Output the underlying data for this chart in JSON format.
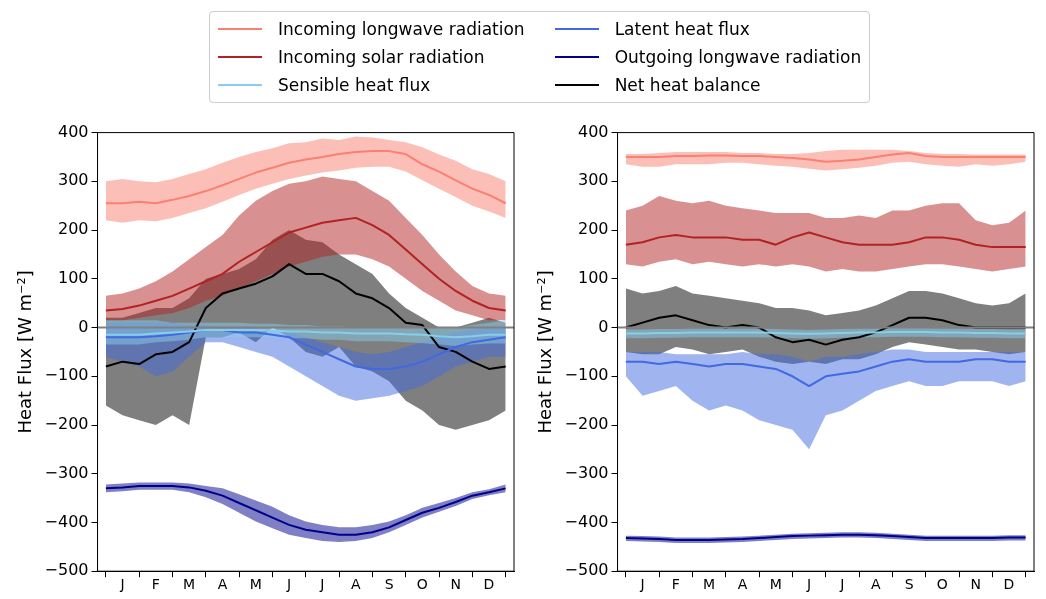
{
  "chart_data": [
    {
      "type": "line",
      "ylabel": "Heat Flux [W m⁻²]",
      "legend": "top",
      "grid": false,
      "categories": [
        null,
        "J",
        null,
        "F",
        null,
        "M",
        null,
        "A",
        null,
        "M",
        null,
        "J",
        null,
        "J",
        null,
        "A",
        null,
        "S",
        null,
        "O",
        null,
        "N",
        null,
        "D",
        null
      ],
      "ylim": [
        -500,
        400
      ],
      "yticks": [
        -500,
        -400,
        -300,
        -200,
        -100,
        0,
        100,
        200,
        300,
        400
      ],
      "ref_lines": [
        {
          "axis": "y",
          "value": 0,
          "color": "#808080"
        }
      ],
      "series": [
        {
          "name": "Incoming longwave radiation",
          "color": "#fa8072",
          "values": [
            255,
            255,
            258,
            255,
            262,
            270,
            280,
            292,
            305,
            318,
            328,
            338,
            345,
            350,
            356,
            360,
            362,
            362,
            356,
            335,
            320,
            302,
            285,
            272,
            255
          ],
          "lower": [
            220,
            215,
            220,
            218,
            225,
            235,
            245,
            258,
            272,
            285,
            295,
            305,
            312,
            318,
            322,
            328,
            330,
            330,
            320,
            302,
            285,
            268,
            250,
            238,
            225
          ],
          "upper": [
            300,
            305,
            300,
            298,
            305,
            315,
            325,
            338,
            350,
            360,
            368,
            378,
            380,
            388,
            385,
            392,
            390,
            385,
            380,
            370,
            355,
            342,
            325,
            315,
            300
          ]
        },
        {
          "name": "Incoming solar radiation",
          "color": "#b22222",
          "values": [
            35,
            38,
            45,
            55,
            65,
            80,
            95,
            110,
            135,
            155,
            175,
            195,
            205,
            215,
            220,
            225,
            210,
            190,
            160,
            130,
            100,
            75,
            55,
            40,
            35
          ],
          "lower": [
            15,
            15,
            20,
            25,
            30,
            40,
            55,
            65,
            80,
            95,
            110,
            125,
            135,
            145,
            150,
            150,
            140,
            125,
            100,
            75,
            55,
            35,
            25,
            15,
            15
          ],
          "upper": [
            65,
            70,
            80,
            95,
            115,
            140,
            165,
            190,
            230,
            260,
            280,
            295,
            300,
            310,
            305,
            300,
            280,
            260,
            225,
            190,
            150,
            115,
            85,
            70,
            65
          ]
        },
        {
          "name": "Sensible heat flux",
          "color": "#87ceeb",
          "values": [
            -15,
            -15,
            -15,
            -12,
            -10,
            -8,
            -5,
            -5,
            -5,
            -5,
            -6,
            -8,
            -8,
            -10,
            -10,
            -12,
            -12,
            -12,
            -14,
            -15,
            -18,
            -20,
            -18,
            -15,
            -15
          ],
          "lower": [
            -35,
            -35,
            -35,
            -30,
            -28,
            -25,
            -20,
            -20,
            -20,
            -20,
            -20,
            -22,
            -22,
            -25,
            -25,
            -28,
            -28,
            -28,
            -30,
            -32,
            -35,
            -38,
            -35,
            -33,
            -33
          ],
          "upper": [
            15,
            15,
            15,
            15,
            10,
            10,
            10,
            10,
            10,
            8,
            8,
            5,
            5,
            2,
            2,
            0,
            0,
            0,
            0,
            0,
            0,
            0,
            5,
            10,
            15
          ]
        },
        {
          "name": "Latent heat flux",
          "color": "#4169e1",
          "values": [
            -20,
            -20,
            -20,
            -18,
            -15,
            -10,
            -5,
            -5,
            -10,
            -10,
            -15,
            -20,
            -35,
            -50,
            -65,
            -80,
            -85,
            -85,
            -80,
            -70,
            -55,
            -40,
            -30,
            -25,
            -20
          ],
          "lower": [
            -60,
            -70,
            -80,
            -100,
            -90,
            -60,
            -30,
            -30,
            -40,
            -50,
            -60,
            -80,
            -100,
            -120,
            -140,
            -150,
            -145,
            -140,
            -130,
            -120,
            -100,
            -80,
            -70,
            -60,
            -60
          ],
          "upper": [
            10,
            10,
            10,
            10,
            10,
            5,
            5,
            0,
            0,
            0,
            -5,
            -10,
            -20,
            -30,
            -40,
            -50,
            -55,
            -50,
            -40,
            -30,
            -20,
            -10,
            -5,
            0,
            0
          ]
        },
        {
          "name": "Outgoing longwave radiation",
          "color": "#00008b",
          "values": [
            -330,
            -328,
            -325,
            -325,
            -325,
            -328,
            -335,
            -345,
            -360,
            -375,
            -390,
            -405,
            -415,
            -420,
            -425,
            -425,
            -420,
            -410,
            -395,
            -380,
            -370,
            -358,
            -345,
            -338,
            -330
          ],
          "lower": [
            -338,
            -336,
            -333,
            -333,
            -333,
            -338,
            -348,
            -362,
            -380,
            -398,
            -412,
            -425,
            -432,
            -438,
            -440,
            -438,
            -432,
            -420,
            -405,
            -390,
            -378,
            -366,
            -352,
            -344,
            -338
          ],
          "upper": [
            -322,
            -320,
            -318,
            -318,
            -318,
            -320,
            -325,
            -330,
            -342,
            -355,
            -368,
            -385,
            -398,
            -405,
            -410,
            -410,
            -405,
            -398,
            -385,
            -370,
            -360,
            -350,
            -338,
            -332,
            -322
          ]
        },
        {
          "name": "Net heat balance",
          "color": "#000000",
          "values": [
            -80,
            -70,
            -75,
            -55,
            -50,
            -30,
            40,
            70,
            80,
            90,
            105,
            130,
            110,
            110,
            95,
            70,
            60,
            40,
            10,
            5,
            -40,
            -50,
            -70,
            -85,
            -80
          ],
          "lower": [
            -160,
            -180,
            -190,
            -200,
            -180,
            -200,
            -20,
            -20,
            -10,
            -30,
            0,
            -20,
            -50,
            -60,
            -40,
            -80,
            -90,
            -110,
            -150,
            -170,
            -200,
            -210,
            -200,
            -190,
            -170
          ],
          "upper": [
            20,
            20,
            30,
            40,
            40,
            60,
            100,
            110,
            120,
            140,
            180,
            200,
            180,
            175,
            150,
            130,
            110,
            70,
            40,
            20,
            0,
            0,
            10,
            20,
            10
          ]
        }
      ]
    },
    {
      "type": "line",
      "ylabel": "Heat Flux [W m⁻²]",
      "grid": false,
      "categories": [
        null,
        "J",
        null,
        "F",
        null,
        "M",
        null,
        "A",
        null,
        "M",
        null,
        "J",
        null,
        "J",
        null,
        "A",
        null,
        "S",
        null,
        "O",
        null,
        "N",
        null,
        "D",
        null
      ],
      "ylim": [
        -500,
        400
      ],
      "yticks": [
        -500,
        -400,
        -300,
        -200,
        -100,
        0,
        100,
        200,
        300,
        400
      ],
      "ref_lines": [
        {
          "axis": "y",
          "value": 0,
          "color": "#808080"
        }
      ],
      "series": [
        {
          "color": "#fa8072",
          "values": [
            350,
            350,
            350,
            352,
            352,
            353,
            353,
            352,
            352,
            350,
            348,
            345,
            340,
            342,
            345,
            350,
            355,
            358,
            352,
            350,
            350,
            350,
            350,
            350,
            350
          ],
          "lower": [
            335,
            330,
            330,
            335,
            335,
            335,
            338,
            338,
            335,
            332,
            330,
            326,
            322,
            325,
            328,
            332,
            338,
            340,
            335,
            332,
            330,
            335,
            332,
            335,
            340
          ],
          "upper": [
            356,
            356,
            358,
            360,
            360,
            360,
            360,
            358,
            358,
            356,
            356,
            358,
            362,
            365,
            365,
            365,
            365,
            362,
            358,
            356,
            356,
            355,
            355,
            355,
            355
          ]
        },
        {
          "color": "#b22222",
          "values": [
            170,
            175,
            185,
            190,
            185,
            185,
            185,
            180,
            180,
            170,
            185,
            195,
            185,
            175,
            170,
            170,
            170,
            175,
            185,
            185,
            180,
            170,
            165,
            165,
            165
          ],
          "lower": [
            130,
            125,
            135,
            140,
            130,
            135,
            130,
            125,
            130,
            125,
            130,
            125,
            115,
            120,
            115,
            115,
            120,
            125,
            130,
            130,
            125,
            120,
            115,
            120,
            125
          ],
          "upper": [
            240,
            250,
            270,
            260,
            255,
            260,
            250,
            245,
            240,
            235,
            235,
            235,
            225,
            225,
            230,
            225,
            240,
            240,
            250,
            255,
            255,
            220,
            210,
            215,
            240
          ]
        },
        {
          "color": "#87ceeb",
          "values": [
            -12,
            -12,
            -11,
            -11,
            -10,
            -10,
            -10,
            -10,
            -10,
            -11,
            -12,
            -13,
            -12,
            -11,
            -10,
            -10,
            -9,
            -9,
            -9,
            -10,
            -10,
            -11,
            -11,
            -12,
            -12
          ],
          "lower": [
            -22,
            -22,
            -21,
            -21,
            -20,
            -20,
            -20,
            -20,
            -20,
            -21,
            -22,
            -23,
            -22,
            -21,
            -20,
            -20,
            -19,
            -19,
            -19,
            -20,
            -20,
            -21,
            -21,
            -22,
            -22
          ],
          "upper": [
            -4,
            -4,
            -3,
            -3,
            -2,
            -2,
            -2,
            -2,
            -2,
            -3,
            -4,
            -5,
            -4,
            -3,
            -2,
            -2,
            -1,
            -1,
            -1,
            -2,
            -2,
            -3,
            -3,
            -4,
            -4
          ]
        },
        {
          "color": "#4169e1",
          "values": [
            -70,
            -70,
            -75,
            -70,
            -75,
            -80,
            -75,
            -75,
            -80,
            -85,
            -100,
            -120,
            -100,
            -95,
            -90,
            -80,
            -70,
            -65,
            -70,
            -70,
            -70,
            -65,
            -65,
            -70,
            -70
          ],
          "lower": [
            -100,
            -140,
            -130,
            -120,
            -150,
            -170,
            -160,
            -170,
            -190,
            -200,
            -210,
            -250,
            -180,
            -170,
            -150,
            -130,
            -120,
            -110,
            -120,
            -120,
            -110,
            -110,
            -110,
            -120,
            -110
          ],
          "upper": [
            -50,
            -50,
            -50,
            -55,
            -55,
            -55,
            -55,
            -50,
            -55,
            -55,
            -60,
            -70,
            -60,
            -60,
            -55,
            -50,
            -45,
            -45,
            -50,
            -50,
            -50,
            -50,
            -50,
            -50,
            -50
          ]
        },
        {
          "color": "#00008b",
          "values": [
            -432,
            -433,
            -434,
            -436,
            -436,
            -436,
            -435,
            -434,
            -432,
            -430,
            -428,
            -427,
            -426,
            -425,
            -425,
            -426,
            -428,
            -430,
            -432,
            -432,
            -432,
            -432,
            -432,
            -431,
            -431
          ],
          "lower": [
            -438,
            -439,
            -440,
            -442,
            -442,
            -442,
            -441,
            -440,
            -438,
            -436,
            -434,
            -433,
            -432,
            -431,
            -431,
            -432,
            -434,
            -436,
            -438,
            -438,
            -438,
            -438,
            -438,
            -437,
            -437
          ],
          "upper": [
            -427,
            -428,
            -429,
            -431,
            -431,
            -431,
            -430,
            -429,
            -427,
            -425,
            -423,
            -422,
            -421,
            -420,
            -420,
            -421,
            -423,
            -425,
            -427,
            -427,
            -427,
            -427,
            -427,
            -426,
            -426
          ]
        },
        {
          "color": "#000000",
          "values": [
            0,
            10,
            20,
            25,
            15,
            5,
            0,
            5,
            0,
            -20,
            -30,
            -25,
            -35,
            -25,
            -20,
            -10,
            5,
            20,
            20,
            15,
            5,
            0,
            0,
            0,
            0
          ],
          "lower": [
            -50,
            -55,
            -55,
            -40,
            -45,
            -55,
            -50,
            -45,
            -60,
            -70,
            -75,
            -70,
            -75,
            -65,
            -65,
            -55,
            -40,
            -30,
            -35,
            -40,
            -45,
            -45,
            -50,
            -55,
            -50
          ],
          "upper": [
            80,
            70,
            75,
            85,
            70,
            65,
            60,
            55,
            50,
            40,
            40,
            35,
            25,
            30,
            35,
            45,
            60,
            75,
            75,
            70,
            60,
            50,
            45,
            50,
            70
          ]
        }
      ]
    }
  ]
}
